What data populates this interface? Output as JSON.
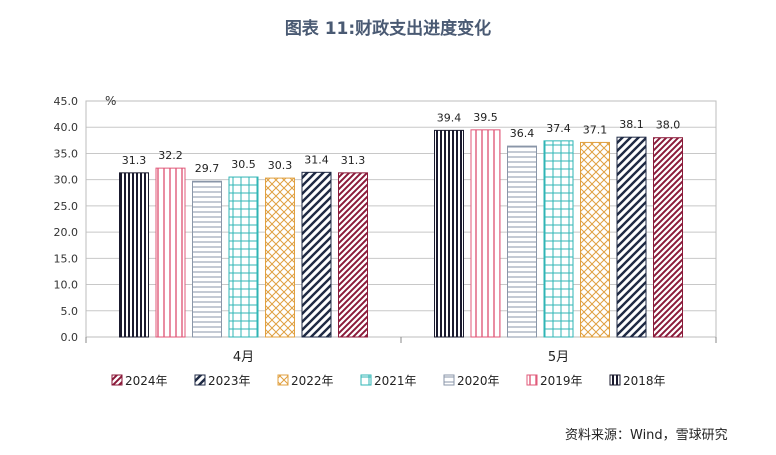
{
  "chart_data": {
    "type": "bar",
    "title": "图表 11:财政支出进度变化",
    "unit_label": "%",
    "categories": [
      "4月",
      "5月"
    ],
    "ylim": [
      0,
      45
    ],
    "yticks": [
      "0.0",
      "5.0",
      "10.0",
      "15.0",
      "20.0",
      "25.0",
      "30.0",
      "35.0",
      "40.0",
      "45.0"
    ],
    "grid": true,
    "legend_position": "bottom",
    "series": [
      {
        "name": "2018年",
        "values": [
          31.3,
          39.4
        ],
        "labels": [
          "31.3",
          "39.4"
        ],
        "color": "#1a1a2e",
        "pattern": "vertical-dense"
      },
      {
        "name": "2019年",
        "values": [
          32.2,
          39.5
        ],
        "labels": [
          "32.2",
          "39.5"
        ],
        "color": "#e05a7a",
        "pattern": "vertical"
      },
      {
        "name": "2020年",
        "values": [
          29.7,
          36.4
        ],
        "labels": [
          "29.7",
          "36.4"
        ],
        "color": "#8a96a8",
        "pattern": "horizontal"
      },
      {
        "name": "2021年",
        "values": [
          30.5,
          37.4
        ],
        "labels": [
          "30.5",
          "37.4"
        ],
        "color": "#2fb5b5",
        "pattern": "grid"
      },
      {
        "name": "2022年",
        "values": [
          30.3,
          37.1
        ],
        "labels": [
          "30.3",
          "37.1"
        ],
        "color": "#e0a040",
        "pattern": "cross"
      },
      {
        "name": "2023年",
        "values": [
          31.4,
          38.1
        ],
        "labels": [
          "31.4",
          "38.1"
        ],
        "color": "#1f2a44",
        "pattern": "diag-wide"
      },
      {
        "name": "2024年",
        "values": [
          31.3,
          38.0
        ],
        "labels": [
          "31.3",
          "38.0"
        ],
        "color": "#8b1a3a",
        "pattern": "diag"
      }
    ],
    "legend_order": [
      "2024年",
      "2023年",
      "2022年",
      "2021年",
      "2020年",
      "2019年",
      "2018年"
    ]
  },
  "source": "资料来源：Wind，雪球研究"
}
